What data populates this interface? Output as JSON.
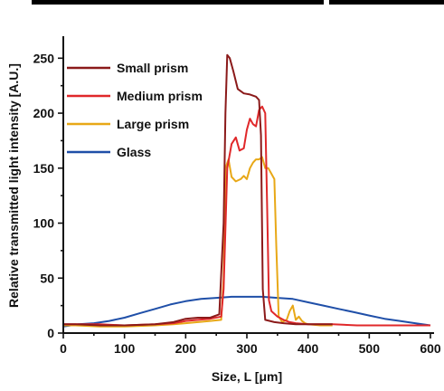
{
  "chart_data": {
    "type": "line",
    "xlabel": "Size, L [μm]",
    "ylabel": "Relative transmitted light intensity [A.U.]",
    "xlim": [
      0,
      600
    ],
    "ylim": [
      0,
      270
    ],
    "x_ticks": [
      0,
      100,
      200,
      300,
      400,
      500,
      600
    ],
    "y_ticks": [
      0,
      50,
      100,
      150,
      200,
      250
    ],
    "grid": false,
    "legend_position": "top-left",
    "series": [
      {
        "name": "Small prism",
        "color": "#8b1a1a",
        "points": [
          [
            0,
            8
          ],
          [
            20,
            8
          ],
          [
            60,
            7
          ],
          [
            100,
            7
          ],
          [
            150,
            8
          ],
          [
            180,
            10
          ],
          [
            200,
            13
          ],
          [
            220,
            14
          ],
          [
            240,
            14
          ],
          [
            255,
            17
          ],
          [
            262,
            100
          ],
          [
            265,
            200
          ],
          [
            268,
            253
          ],
          [
            272,
            250
          ],
          [
            278,
            238
          ],
          [
            285,
            222
          ],
          [
            295,
            218
          ],
          [
            305,
            217
          ],
          [
            315,
            215
          ],
          [
            320,
            212
          ],
          [
            323,
            180
          ],
          [
            326,
            40
          ],
          [
            330,
            12
          ],
          [
            345,
            10
          ],
          [
            360,
            9
          ],
          [
            380,
            8
          ],
          [
            400,
            8
          ],
          [
            420,
            8
          ],
          [
            440,
            8
          ]
        ]
      },
      {
        "name": "Medium prism",
        "color": "#e0282a",
        "points": [
          [
            0,
            8
          ],
          [
            30,
            8
          ],
          [
            60,
            8
          ],
          [
            100,
            7
          ],
          [
            150,
            8
          ],
          [
            180,
            9
          ],
          [
            200,
            11
          ],
          [
            220,
            12
          ],
          [
            240,
            13
          ],
          [
            258,
            15
          ],
          [
            262,
            40
          ],
          [
            268,
            150
          ],
          [
            275,
            172
          ],
          [
            282,
            178
          ],
          [
            288,
            166
          ],
          [
            295,
            168
          ],
          [
            300,
            185
          ],
          [
            305,
            195
          ],
          [
            310,
            190
          ],
          [
            315,
            188
          ],
          [
            320,
            203
          ],
          [
            325,
            206
          ],
          [
            330,
            200
          ],
          [
            333,
            120
          ],
          [
            336,
            30
          ],
          [
            340,
            20
          ],
          [
            350,
            15
          ],
          [
            360,
            12
          ],
          [
            370,
            10
          ],
          [
            380,
            9
          ],
          [
            400,
            8
          ],
          [
            440,
            8
          ],
          [
            480,
            7
          ],
          [
            520,
            7
          ],
          [
            560,
            7
          ],
          [
            600,
            7
          ]
        ]
      },
      {
        "name": "Large prism",
        "color": "#e8a817",
        "points": [
          [
            0,
            7
          ],
          [
            20,
            7
          ],
          [
            60,
            6
          ],
          [
            100,
            6
          ],
          [
            150,
            7
          ],
          [
            180,
            8
          ],
          [
            200,
            9
          ],
          [
            220,
            10
          ],
          [
            240,
            11
          ],
          [
            258,
            12
          ],
          [
            262,
            50
          ],
          [
            265,
            150
          ],
          [
            270,
            158
          ],
          [
            275,
            142
          ],
          [
            282,
            138
          ],
          [
            290,
            140
          ],
          [
            295,
            143
          ],
          [
            300,
            140
          ],
          [
            305,
            150
          ],
          [
            310,
            155
          ],
          [
            315,
            158
          ],
          [
            320,
            158
          ],
          [
            325,
            160
          ],
          [
            330,
            150
          ],
          [
            335,
            150
          ],
          [
            340,
            145
          ],
          [
            345,
            140
          ],
          [
            348,
            80
          ],
          [
            352,
            15
          ],
          [
            358,
            10
          ],
          [
            365,
            12
          ],
          [
            370,
            20
          ],
          [
            375,
            25
          ],
          [
            380,
            12
          ],
          [
            385,
            15
          ],
          [
            390,
            11
          ],
          [
            395,
            9
          ],
          [
            400,
            8
          ],
          [
            420,
            7
          ],
          [
            440,
            7
          ]
        ]
      },
      {
        "name": "Glass",
        "color": "#1f4fa8",
        "points": [
          [
            0,
            6
          ],
          [
            25,
            8
          ],
          [
            50,
            9
          ],
          [
            75,
            11
          ],
          [
            100,
            14
          ],
          [
            125,
            18
          ],
          [
            150,
            22
          ],
          [
            175,
            26
          ],
          [
            200,
            29
          ],
          [
            225,
            31
          ],
          [
            250,
            32
          ],
          [
            275,
            33
          ],
          [
            300,
            33
          ],
          [
            325,
            33
          ],
          [
            350,
            32
          ],
          [
            375,
            31
          ],
          [
            400,
            28
          ],
          [
            425,
            25
          ],
          [
            450,
            22
          ],
          [
            475,
            19
          ],
          [
            500,
            16
          ],
          [
            525,
            13
          ],
          [
            550,
            11
          ],
          [
            575,
            9
          ],
          [
            600,
            7
          ]
        ]
      }
    ]
  }
}
